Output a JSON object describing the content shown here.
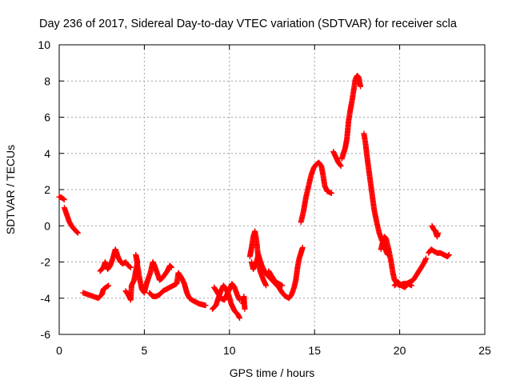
{
  "chart_data": {
    "type": "scatter",
    "title": "Day 236 of 2017, Sidereal Day-to-day VTEC variation (SDTVAR) for receiver scla",
    "xlabel": "GPS time / hours",
    "ylabel": "SDTVAR / TECUs",
    "xlim": [
      0,
      25
    ],
    "ylim": [
      -6,
      10
    ],
    "xticks": [
      0,
      5,
      10,
      15,
      20,
      25
    ],
    "yticks": [
      -6,
      -4,
      -2,
      0,
      2,
      4,
      6,
      8,
      10
    ],
    "grid": true,
    "marker": "+",
    "color": "#ff0000",
    "series": [
      {
        "name": "SDTVAR",
        "segments": [
          [
            [
              0.0,
              1.6
            ],
            [
              0.15,
              1.55
            ],
            [
              0.3,
              1.45
            ]
          ],
          [
            [
              0.3,
              1.0
            ],
            [
              0.45,
              0.6
            ],
            [
              0.6,
              0.2
            ],
            [
              0.8,
              -0.1
            ],
            [
              1.0,
              -0.3
            ],
            [
              1.1,
              -0.4
            ]
          ],
          [
            [
              1.4,
              -3.7
            ],
            [
              1.7,
              -3.8
            ],
            [
              2.0,
              -3.9
            ],
            [
              2.3,
              -4.0
            ],
            [
              2.5,
              -3.8
            ],
            [
              2.6,
              -3.5
            ],
            [
              2.75,
              -3.4
            ],
            [
              2.9,
              -3.3
            ]
          ],
          [
            [
              2.4,
              -2.5
            ],
            [
              2.6,
              -2.3
            ],
            [
              2.7,
              -2.0
            ],
            [
              2.85,
              -2.4
            ],
            [
              3.0,
              -2.2
            ],
            [
              3.15,
              -1.8
            ],
            [
              3.3,
              -1.3
            ],
            [
              3.45,
              -1.7
            ],
            [
              3.6,
              -2.0
            ],
            [
              3.75,
              -2.1
            ],
            [
              3.9,
              -2.0
            ],
            [
              4.05,
              -2.2
            ],
            [
              4.2,
              -2.3
            ]
          ],
          [
            [
              3.9,
              -3.6
            ],
            [
              4.05,
              -3.8
            ],
            [
              4.2,
              -4.1
            ],
            [
              4.25,
              -3.3
            ],
            [
              4.4,
              -3.0
            ],
            [
              4.5,
              -2.5
            ],
            [
              4.6,
              -2.0
            ],
            [
              4.5,
              -1.6
            ],
            [
              4.7,
              -2.8
            ],
            [
              4.85,
              -3.5
            ],
            [
              5.0,
              -3.7
            ],
            [
              5.1,
              -3.3
            ],
            [
              5.2,
              -3.0
            ],
            [
              5.35,
              -2.6
            ],
            [
              5.5,
              -2.0
            ],
            [
              5.6,
              -2.2
            ],
            [
              5.75,
              -2.6
            ],
            [
              5.9,
              -3.0
            ],
            [
              6.05,
              -2.9
            ],
            [
              6.2,
              -2.7
            ],
            [
              6.35,
              -2.5
            ],
            [
              6.5,
              -2.2
            ],
            [
              6.6,
              -2.3
            ]
          ],
          [
            [
              5.3,
              -3.7
            ],
            [
              5.5,
              -3.9
            ],
            [
              5.7,
              -3.9
            ],
            [
              5.9,
              -3.8
            ],
            [
              6.1,
              -3.6
            ],
            [
              6.3,
              -3.5
            ],
            [
              6.5,
              -3.4
            ],
            [
              6.7,
              -3.3
            ],
            [
              6.9,
              -3.2
            ],
            [
              7.0,
              -2.6
            ],
            [
              7.2,
              -2.9
            ],
            [
              7.35,
              -3.2
            ],
            [
              7.5,
              -3.7
            ],
            [
              7.65,
              -4.0
            ],
            [
              7.8,
              -4.1
            ],
            [
              8.0,
              -4.2
            ],
            [
              8.2,
              -4.3
            ],
            [
              8.4,
              -4.35
            ],
            [
              8.6,
              -4.4
            ]
          ],
          [
            [
              9.0,
              -4.6
            ],
            [
              9.2,
              -4.4
            ],
            [
              9.35,
              -4.0
            ],
            [
              9.5,
              -3.6
            ],
            [
              9.65,
              -3.3
            ],
            [
              9.8,
              -3.5
            ],
            [
              9.95,
              -3.8
            ],
            [
              10.1,
              -4.3
            ],
            [
              10.3,
              -4.7
            ],
            [
              10.5,
              -4.9
            ],
            [
              10.6,
              -5.1
            ]
          ],
          [
            [
              9.1,
              -3.4
            ],
            [
              9.3,
              -3.7
            ],
            [
              9.5,
              -4.0
            ],
            [
              9.7,
              -4.1
            ],
            [
              9.85,
              -3.8
            ],
            [
              10.0,
              -3.5
            ],
            [
              10.15,
              -3.2
            ],
            [
              10.3,
              -3.4
            ],
            [
              10.45,
              -3.8
            ],
            [
              10.6,
              -4.1
            ]
          ],
          [
            [
              10.8,
              -4.3
            ],
            [
              10.85,
              -3.9
            ],
            [
              10.9,
              -4.6
            ]
          ],
          [
            [
              11.2,
              -1.7
            ],
            [
              11.3,
              -1.2
            ],
            [
              11.4,
              -0.6
            ],
            [
              11.5,
              -0.3
            ],
            [
              11.6,
              -0.9
            ],
            [
              11.7,
              -1.8
            ],
            [
              11.8,
              -2.5
            ],
            [
              12.0,
              -3.0
            ],
            [
              12.15,
              -3.3
            ]
          ],
          [
            [
              11.3,
              -2.0
            ],
            [
              11.4,
              -2.4
            ],
            [
              11.55,
              -2.1
            ],
            [
              11.7,
              -1.6
            ],
            [
              11.9,
              -2.2
            ],
            [
              12.1,
              -2.6
            ],
            [
              12.3,
              -2.8
            ],
            [
              12.5,
              -3.0
            ],
            [
              12.7,
              -3.2
            ],
            [
              12.9,
              -3.4
            ],
            [
              13.1,
              -3.7
            ],
            [
              13.3,
              -3.9
            ],
            [
              13.5,
              -4.0
            ],
            [
              13.65,
              -3.8
            ],
            [
              13.8,
              -3.4
            ],
            [
              13.9,
              -3.0
            ],
            [
              14.0,
              -2.3
            ],
            [
              14.1,
              -1.8
            ],
            [
              14.2,
              -1.5
            ],
            [
              14.3,
              -1.2
            ]
          ],
          [
            [
              12.3,
              -2.5
            ],
            [
              12.5,
              -2.8
            ],
            [
              12.7,
              -3.1
            ],
            [
              12.9,
              -3.2
            ],
            [
              13.1,
              -3.3
            ]
          ],
          [
            [
              14.2,
              0.2
            ],
            [
              14.35,
              0.8
            ],
            [
              14.5,
              1.6
            ],
            [
              14.65,
              2.2
            ],
            [
              14.8,
              2.8
            ],
            [
              14.95,
              3.2
            ],
            [
              15.1,
              3.4
            ],
            [
              15.25,
              3.5
            ],
            [
              15.4,
              3.3
            ],
            [
              15.5,
              2.8
            ],
            [
              15.6,
              2.2
            ],
            [
              15.75,
              1.9
            ],
            [
              15.9,
              1.85
            ],
            [
              16.0,
              1.8
            ]
          ],
          [
            [
              16.1,
              4.1
            ],
            [
              16.25,
              3.8
            ],
            [
              16.4,
              3.5
            ],
            [
              16.55,
              3.3
            ]
          ],
          [
            [
              16.6,
              3.7
            ],
            [
              16.7,
              4.0
            ],
            [
              16.8,
              4.3
            ],
            [
              16.9,
              4.8
            ],
            [
              17.0,
              5.8
            ],
            [
              17.1,
              6.4
            ],
            [
              17.2,
              6.9
            ],
            [
              17.3,
              7.5
            ],
            [
              17.4,
              8.1
            ],
            [
              17.5,
              8.3
            ],
            [
              17.6,
              8.2
            ],
            [
              17.65,
              7.9
            ],
            [
              17.7,
              7.7
            ]
          ],
          [
            [
              17.9,
              5.1
            ],
            [
              18.0,
              4.5
            ],
            [
              18.1,
              3.7
            ],
            [
              18.2,
              3.0
            ],
            [
              18.3,
              2.3
            ],
            [
              18.4,
              1.6
            ],
            [
              18.5,
              0.9
            ],
            [
              18.65,
              0.2
            ],
            [
              18.8,
              -0.4
            ],
            [
              18.95,
              -0.8
            ],
            [
              19.1,
              -1.0
            ],
            [
              19.2,
              -1.4
            ],
            [
              19.3,
              -1.6
            ]
          ],
          [
            [
              18.9,
              -1.3
            ],
            [
              19.0,
              -0.9
            ],
            [
              19.1,
              -0.6
            ],
            [
              19.2,
              -0.7
            ],
            [
              19.35,
              -1.3
            ],
            [
              19.5,
              -2.0
            ],
            [
              19.6,
              -2.6
            ],
            [
              19.7,
              -3.0
            ],
            [
              19.85,
              -3.2
            ],
            [
              20.0,
              -3.3
            ],
            [
              20.2,
              -3.2
            ],
            [
              20.4,
              -3.2
            ],
            [
              20.6,
              -3.1
            ],
            [
              20.8,
              -3.0
            ],
            [
              21.0,
              -2.7
            ],
            [
              21.2,
              -2.4
            ],
            [
              21.4,
              -2.1
            ],
            [
              21.55,
              -1.8
            ]
          ],
          [
            [
              19.7,
              -3.3
            ],
            [
              19.9,
              -3.1
            ],
            [
              20.1,
              -3.3
            ],
            [
              20.3,
              -3.4
            ],
            [
              20.5,
              -3.2
            ],
            [
              20.7,
              -3.3
            ]
          ],
          [
            [
              21.7,
              -1.5
            ],
            [
              21.85,
              -1.3
            ],
            [
              22.0,
              -1.4
            ],
            [
              22.2,
              -1.5
            ],
            [
              22.4,
              -1.5
            ],
            [
              22.6,
              -1.6
            ],
            [
              22.8,
              -1.7
            ],
            [
              22.9,
              -1.6
            ]
          ],
          [
            [
              21.9,
              0.0
            ],
            [
              22.0,
              -0.2
            ],
            [
              22.1,
              -0.3
            ],
            [
              22.2,
              -0.6
            ],
            [
              22.25,
              -0.4
            ]
          ]
        ]
      }
    ]
  }
}
